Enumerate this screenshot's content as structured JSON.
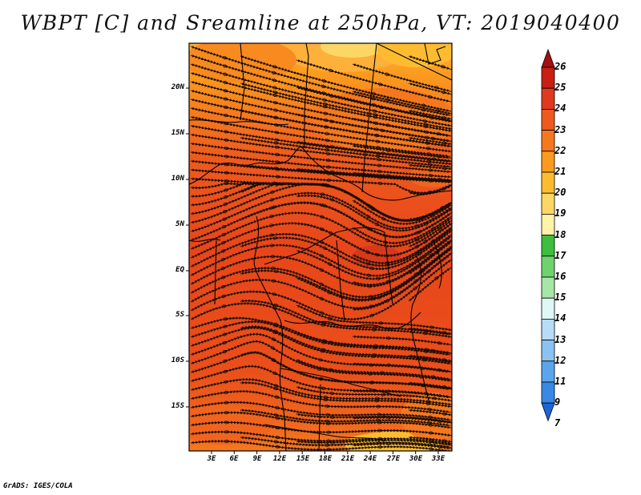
{
  "title": "WBPT [C] and Sreamline at 250hPa, VT: 2019040400",
  "credit": "GrADS: IGES/COLA",
  "map": {
    "lat_labels": [
      "20N",
      "15N",
      "10N",
      "5N",
      "EQ",
      "5S",
      "10S",
      "15S"
    ],
    "lon_labels": [
      "3E",
      "6E",
      "9E",
      "12E",
      "15E",
      "18E",
      "21E",
      "24E",
      "27E",
      "30E",
      "33E"
    ],
    "field": "WBPT [C]",
    "dominant_colors": [
      "#e8461a",
      "#f0641e",
      "#f98a1f",
      "#fdb03a",
      "#fddc6a"
    ],
    "border_color": "#000000",
    "streamline_color": "#1a0d05"
  },
  "colorbar": {
    "labels": [
      "26",
      "25",
      "24",
      "23",
      "22",
      "21",
      "20",
      "19",
      "18",
      "17",
      "16",
      "15",
      "14",
      "13",
      "12",
      "11",
      "9",
      "7"
    ],
    "colors": [
      "#a50f0f",
      "#c81e14",
      "#e03a1e",
      "#ee5a1e",
      "#f5781e",
      "#fb9a1e",
      "#fdbc30",
      "#fdd766",
      "#fff3a8",
      "#3ebd3e",
      "#6fd26f",
      "#a6e6a6",
      "#e0f7f7",
      "#b7dcf7",
      "#8cc2f2",
      "#5aa6ec",
      "#3888e5",
      "#1e64d8"
    ]
  }
}
